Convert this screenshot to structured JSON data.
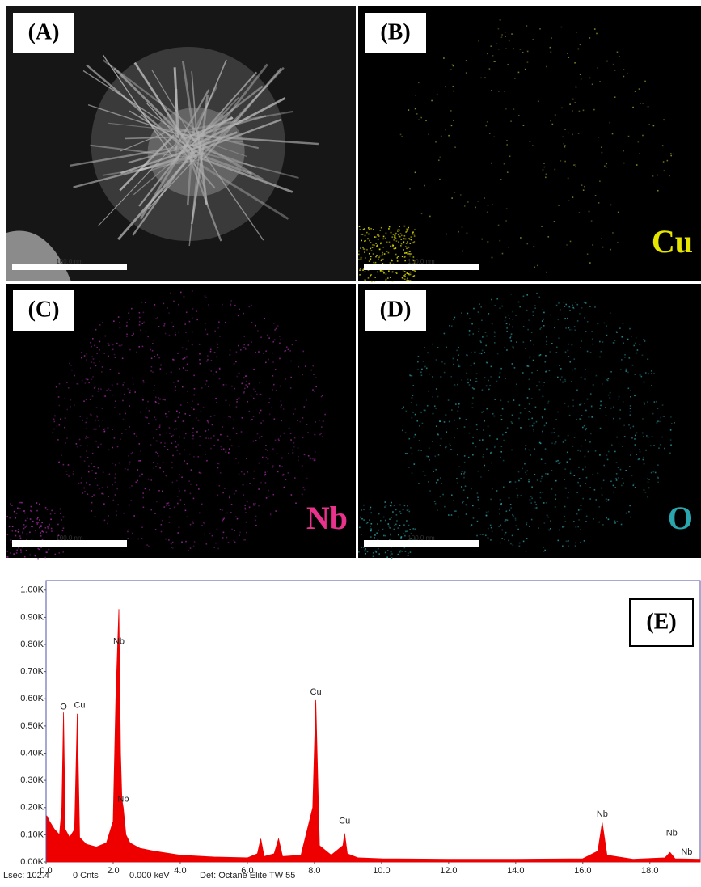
{
  "panels": [
    {
      "label": "(A)",
      "scale_bar": "100.0 nm"
    },
    {
      "label": "(B)",
      "element": "Cu",
      "element_color": "#e6e600",
      "scale_bar": "100.0 nm"
    },
    {
      "label": "(C)",
      "element": "Nb",
      "element_color": "#e8328c",
      "scale_bar": "100.0 nm"
    },
    {
      "label": "(D)",
      "element": "O",
      "element_color": "#2aa6ae",
      "scale_bar": "100.0 nm"
    }
  ],
  "chart_data": {
    "type": "area",
    "label": "(E)",
    "color": "#ee0000",
    "x": [
      0.02,
      0.1,
      0.25,
      0.4,
      0.47,
      0.52,
      0.57,
      0.7,
      0.85,
      0.93,
      1.0,
      1.2,
      1.5,
      1.8,
      2.0,
      2.08,
      2.17,
      2.22,
      2.26,
      2.3,
      2.38,
      2.5,
      2.8,
      3.2,
      4.0,
      5.0,
      6.0,
      6.3,
      6.4,
      6.5,
      6.8,
      6.93,
      7.05,
      7.6,
      7.95,
      8.04,
      8.15,
      8.5,
      8.85,
      8.9,
      8.98,
      9.3,
      10.0,
      12.0,
      14.0,
      16.0,
      16.45,
      16.58,
      16.72,
      17.5,
      18.45,
      18.6,
      18.75,
      19.5
    ],
    "values": [
      170,
      150,
      120,
      100,
      200,
      550,
      120,
      90,
      120,
      545,
      90,
      65,
      55,
      70,
      150,
      600,
      930,
      400,
      230,
      200,
      100,
      70,
      50,
      40,
      25,
      18,
      15,
      30,
      85,
      20,
      30,
      85,
      20,
      25,
      200,
      595,
      60,
      25,
      60,
      105,
      30,
      15,
      12,
      10,
      10,
      12,
      40,
      145,
      25,
      10,
      15,
      35,
      12,
      10
    ],
    "xlim": [
      0,
      19.5
    ],
    "ylim": [
      0,
      1035
    ],
    "xticks": [
      {
        "value": 0,
        "label": "0.0"
      },
      {
        "value": 2,
        "label": "2.0"
      },
      {
        "value": 4,
        "label": "4.0"
      },
      {
        "value": 6,
        "label": "6.0"
      },
      {
        "value": 8,
        "label": "8.0"
      },
      {
        "value": 10,
        "label": "10.0"
      },
      {
        "value": 12,
        "label": "12.0"
      },
      {
        "value": 14,
        "label": "14.0"
      },
      {
        "value": 16,
        "label": "16.0"
      },
      {
        "value": 18,
        "label": "18.0"
      }
    ],
    "yticks": [
      {
        "value": 0,
        "label": "0.00K"
      },
      {
        "value": 100,
        "label": "0.10K"
      },
      {
        "value": 200,
        "label": "0.20K"
      },
      {
        "value": 300,
        "label": "0.30K"
      },
      {
        "value": 400,
        "label": "0.40K"
      },
      {
        "value": 500,
        "label": "0.50K"
      },
      {
        "value": 600,
        "label": "0.60K"
      },
      {
        "value": 700,
        "label": "0.70K"
      },
      {
        "value": 800,
        "label": "0.80K"
      },
      {
        "value": 900,
        "label": "0.90K"
      },
      {
        "value": 1000,
        "label": "1.00K"
      }
    ],
    "annotations": [
      {
        "text": "O",
        "x": 0.52,
        "y": 570
      },
      {
        "text": "Cu",
        "x": 1.0,
        "y": 575
      },
      {
        "text": "Nb",
        "x": 2.17,
        "y": 810
      },
      {
        "text": "Nb",
        "x": 2.3,
        "y": 230
      },
      {
        "text": "Cu",
        "x": 8.04,
        "y": 625
      },
      {
        "text": "Cu",
        "x": 8.9,
        "y": 150
      },
      {
        "text": "Nb",
        "x": 16.58,
        "y": 175
      },
      {
        "text": "Nb",
        "x": 18.65,
        "y": 105
      },
      {
        "text": "Nb",
        "x": 19.1,
        "y": 35
      }
    ],
    "footer": [
      "Lsec: 102.4",
      "0 Cnts",
      "0.000 keV",
      "Det: Octane Elite TW 55"
    ]
  }
}
